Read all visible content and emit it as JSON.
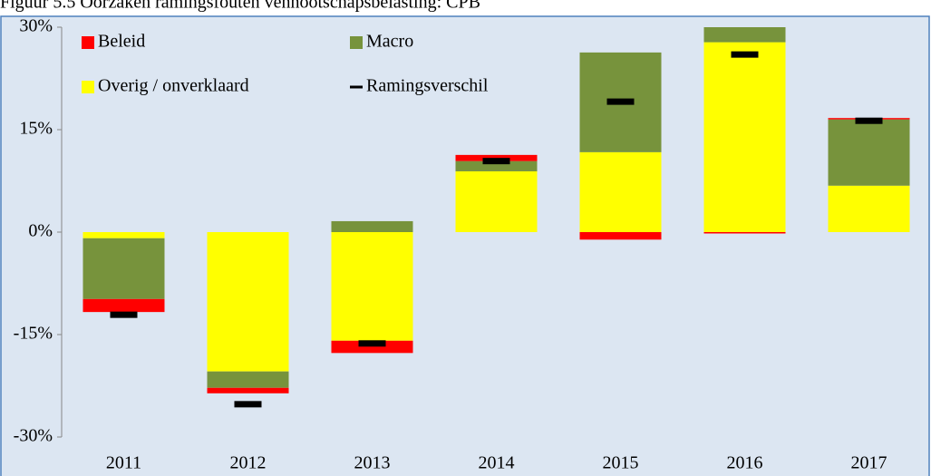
{
  "chart_data": {
    "type": "stacked-bar",
    "title": "Figuur 5.5 Oorzaken ramingsfouten vennootschapsbelasting: CPB",
    "categories": [
      "2011",
      "2012",
      "2013",
      "2014",
      "2015",
      "2016",
      "2017"
    ],
    "series": [
      {
        "name": "Beleid",
        "color": "#ff0000",
        "kind": "bar",
        "values": [
          -1.9,
          -0.8,
          -1.8,
          0.9,
          -1.1,
          -0.2,
          0.2
        ]
      },
      {
        "name": "Macro",
        "color": "#77933c",
        "kind": "bar",
        "values": [
          -8.9,
          -2.4,
          1.6,
          1.5,
          14.6,
          2.5,
          9.7
        ]
      },
      {
        "name": "Overig / onverklaard",
        "color": "#ffff00",
        "kind": "bar",
        "values": [
          -0.9,
          -20.4,
          -15.9,
          8.9,
          11.7,
          27.8,
          6.8
        ]
      },
      {
        "name": "Ramingsverschil",
        "color": "#000000",
        "kind": "marker",
        "values": [
          -12.1,
          -25.2,
          -16.3,
          10.4,
          19.1,
          26.0,
          16.3
        ]
      }
    ],
    "ylim": [
      -30,
      30
    ],
    "yticks": [
      {
        "value": -30,
        "label": "-30%"
      },
      {
        "value": -15,
        "label": "-15%"
      },
      {
        "value": 0,
        "label": "0%"
      },
      {
        "value": 15,
        "label": "15%"
      },
      {
        "value": 30,
        "label": "30%"
      }
    ],
    "legend": "top-left"
  }
}
